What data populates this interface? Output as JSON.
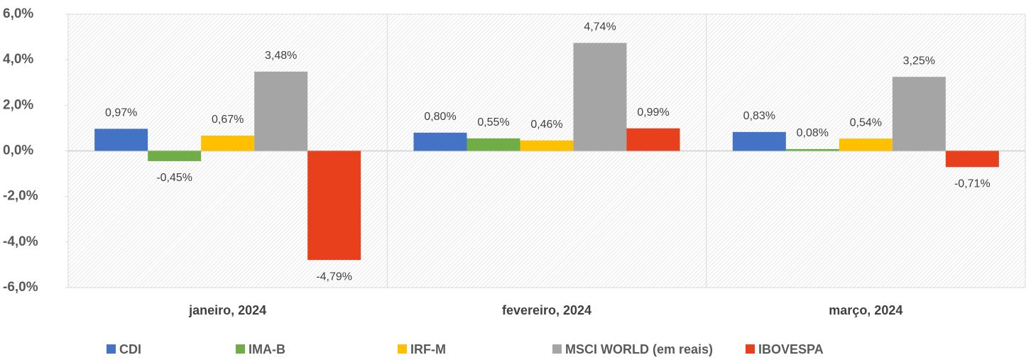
{
  "chart_data": {
    "type": "bar",
    "categories": [
      "janeiro, 2024",
      "fevereiro, 2024",
      "março, 2024"
    ],
    "series": [
      {
        "name": "CDI",
        "color": "#4472c4",
        "values": [
          0.97,
          0.8,
          0.83
        ],
        "value_labels": [
          "0,97%",
          "0,80%",
          "0,83%"
        ]
      },
      {
        "name": "IMA-B",
        "color": "#70ad47",
        "values": [
          -0.45,
          0.55,
          0.08
        ],
        "value_labels": [
          "-0,45%",
          "0,55%",
          "0,08%"
        ]
      },
      {
        "name": "IRF-M",
        "color": "#ffc000",
        "values": [
          0.67,
          0.46,
          0.54
        ],
        "value_labels": [
          "0,67%",
          "0,46%",
          "0,54%"
        ]
      },
      {
        "name": "MSCI WORLD (em reais)",
        "color": "#a5a5a5",
        "values": [
          3.48,
          4.74,
          3.25
        ],
        "value_labels": [
          "3,48%",
          "4,74%",
          "3,25%"
        ]
      },
      {
        "name": "IBOVESPA",
        "color": "#e8401c",
        "values": [
          -4.79,
          0.99,
          -0.71
        ],
        "value_labels": [
          "-4,79%",
          "0,99%",
          "-0,71%"
        ]
      }
    ],
    "ylim": [
      -6,
      6
    ],
    "yticks": [
      {
        "value": 6,
        "label": "6,0%"
      },
      {
        "value": 4,
        "label": "4,0%"
      },
      {
        "value": 2,
        "label": "2,0%"
      },
      {
        "value": 0,
        "label": "0,0%"
      },
      {
        "value": -2,
        "label": "-2,0%"
      },
      {
        "value": -4,
        "label": "-4,0%"
      },
      {
        "value": -6,
        "label": "-6,0%"
      }
    ],
    "legend": "bottom"
  }
}
